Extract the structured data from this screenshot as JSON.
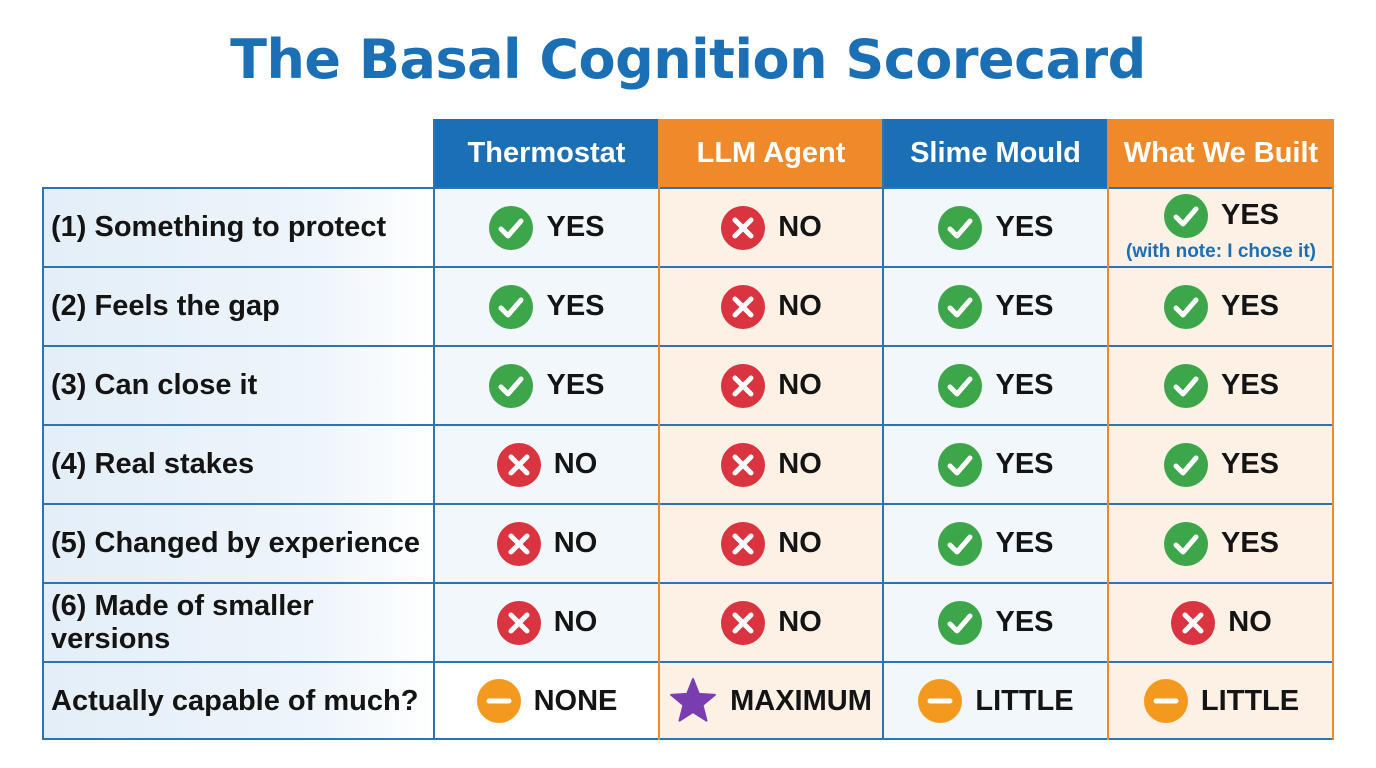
{
  "title": "The Basal Cognition Scorecard",
  "columns": [
    {
      "label": "Thermostat",
      "color": "#1b6fb5"
    },
    {
      "label": "LLM Agent",
      "color": "#ef8a2b"
    },
    {
      "label": "Slime Mould",
      "color": "#1b6fb5"
    },
    {
      "label": "What We Built",
      "color": "#ef8a2b"
    }
  ],
  "rows": [
    {
      "label": "(1) Something to protect",
      "cells": [
        {
          "icon": "check-icon",
          "text": "YES"
        },
        {
          "icon": "cross-icon",
          "text": "NO"
        },
        {
          "icon": "check-icon",
          "text": "YES"
        },
        {
          "icon": "check-icon",
          "text": "YES",
          "note": "(with note: I chose it)"
        }
      ]
    },
    {
      "label": "(2) Feels the gap",
      "cells": [
        {
          "icon": "check-icon",
          "text": "YES"
        },
        {
          "icon": "cross-icon",
          "text": "NO"
        },
        {
          "icon": "check-icon",
          "text": "YES"
        },
        {
          "icon": "check-icon",
          "text": "YES"
        }
      ]
    },
    {
      "label": "(3) Can close it",
      "cells": [
        {
          "icon": "check-icon",
          "text": "YES"
        },
        {
          "icon": "cross-icon",
          "text": "NO"
        },
        {
          "icon": "check-icon",
          "text": "YES"
        },
        {
          "icon": "check-icon",
          "text": "YES"
        }
      ]
    },
    {
      "label": "(4) Real stakes",
      "cells": [
        {
          "icon": "cross-icon",
          "text": "NO"
        },
        {
          "icon": "cross-icon",
          "text": "NO"
        },
        {
          "icon": "check-icon",
          "text": "YES"
        },
        {
          "icon": "check-icon",
          "text": "YES"
        }
      ]
    },
    {
      "label": "(5) Changed by experience",
      "cells": [
        {
          "icon": "cross-icon",
          "text": "NO"
        },
        {
          "icon": "cross-icon",
          "text": "NO"
        },
        {
          "icon": "check-icon",
          "text": "YES"
        },
        {
          "icon": "check-icon",
          "text": "YES"
        }
      ]
    },
    {
      "label": "(6) Made of smaller versions",
      "cells": [
        {
          "icon": "cross-icon",
          "text": "NO"
        },
        {
          "icon": "cross-icon",
          "text": "NO"
        },
        {
          "icon": "check-icon",
          "text": "YES"
        },
        {
          "icon": "cross-icon",
          "text": "NO"
        }
      ]
    },
    {
      "label": "Actually capable of much?",
      "cells": [
        {
          "icon": "minus-icon",
          "text": "NONE"
        },
        {
          "icon": "star-icon",
          "text": "MAXIMUM"
        },
        {
          "icon": "minus-icon",
          "text": "LITTLE"
        },
        {
          "icon": "minus-icon",
          "text": "LITTLE"
        }
      ]
    }
  ],
  "colors": {
    "check": "#3da54a",
    "cross": "#d9343f",
    "minus": "#f39a1e",
    "star": "#7a3db0",
    "grid_blue": "#2d74b4",
    "grid_orange": "#ef8a2b"
  }
}
